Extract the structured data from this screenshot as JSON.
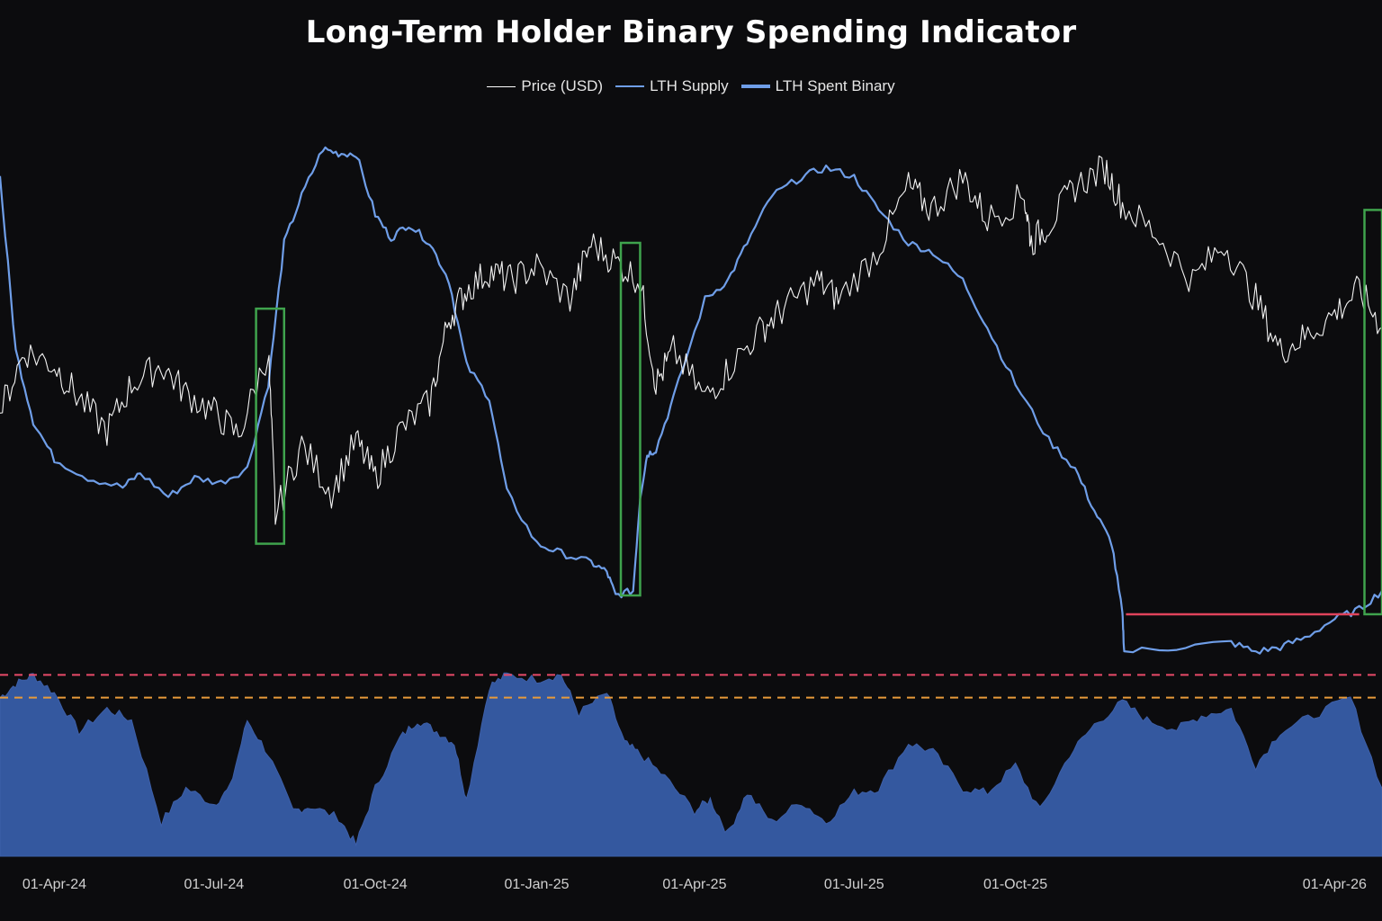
{
  "chart_data": {
    "type": "line",
    "title": "Long-Term Holder Binary Spending Indicator",
    "xlabel": "",
    "ylabel": "",
    "x_range": [
      "2024-03-01",
      "2026-04-28"
    ],
    "x_ticks": [
      "01-Apr-24",
      "01-Jul-24",
      "01-Oct-24",
      "01-Jan-25",
      "01-Apr-25",
      "01-Jul-25",
      "01-Oct-25",
      "01-Apr-26"
    ],
    "grid": false,
    "legend_position": "top-center",
    "legend": [
      {
        "name": "Price (USD)",
        "color": "#ffffff",
        "style": "thin"
      },
      {
        "name": "LTH Supply",
        "color": "#6f9ee8",
        "style": "medium"
      },
      {
        "name": "LTH Spent Binary",
        "color": "#6f9ee8",
        "style": "thick"
      }
    ],
    "series": [
      {
        "name": "Price (USD)",
        "color": "#f2f2f2",
        "scale": "relative (0-100)",
        "x": [
          "2024-03-01",
          "2024-03-15",
          "2024-04-01",
          "2024-04-15",
          "2024-05-01",
          "2024-05-15",
          "2024-06-01",
          "2024-06-15",
          "2024-07-01",
          "2024-07-15",
          "2024-08-01",
          "2024-08-05",
          "2024-08-20",
          "2024-09-06",
          "2024-09-20",
          "2024-10-01",
          "2024-10-15",
          "2024-11-01",
          "2024-11-12",
          "2024-11-22",
          "2024-12-05",
          "2024-12-17",
          "2025-01-01",
          "2025-01-20",
          "2025-02-01",
          "2025-02-15",
          "2025-03-01",
          "2025-03-10",
          "2025-03-20",
          "2025-04-07",
          "2025-04-22",
          "2025-05-10",
          "2025-05-22",
          "2025-06-10",
          "2025-06-22",
          "2025-07-14",
          "2025-08-01",
          "2025-08-14",
          "2025-09-01",
          "2025-09-15",
          "2025-10-06",
          "2025-10-10",
          "2025-10-20",
          "2025-11-04",
          "2025-11-21",
          "2025-12-01",
          "2025-12-20",
          "2026-01-10",
          "2026-01-28",
          "2026-02-15",
          "2026-03-01",
          "2026-03-15",
          "2026-04-01",
          "2026-04-15",
          "2026-04-28"
        ],
        "y": [
          42,
          55,
          52,
          45,
          38,
          48,
          52,
          46,
          42,
          37,
          55,
          20,
          35,
          25,
          36,
          28,
          38,
          44,
          62,
          68,
          72,
          70,
          73,
          66,
          78,
          74,
          70,
          48,
          55,
          45,
          52,
          60,
          64,
          70,
          66,
          76,
          90,
          85,
          92,
          83,
          88,
          78,
          82,
          90,
          94,
          86,
          80,
          70,
          78,
          66,
          55,
          58,
          63,
          68,
          60
        ]
      },
      {
        "name": "LTH Supply",
        "color": "#6f9ee8",
        "scale": "relative (0-100)",
        "x": [
          "2024-03-01",
          "2024-03-10",
          "2024-03-20",
          "2024-04-01",
          "2024-04-20",
          "2024-05-10",
          "2024-05-20",
          "2024-06-05",
          "2024-06-20",
          "2024-07-05",
          "2024-07-20",
          "2024-08-01",
          "2024-08-10",
          "2024-08-20",
          "2024-09-01",
          "2024-09-10",
          "2024-09-20",
          "2024-10-01",
          "2024-10-10",
          "2024-10-20",
          "2024-11-01",
          "2024-11-12",
          "2024-11-22",
          "2024-12-05",
          "2024-12-15",
          "2025-01-01",
          "2025-01-15",
          "2025-02-01",
          "2025-02-10",
          "2025-02-15",
          "2025-02-25",
          "2025-03-01",
          "2025-03-05",
          "2025-03-10",
          "2025-03-20",
          "2025-04-07",
          "2025-04-20",
          "2025-05-01",
          "2025-05-15",
          "2025-06-01",
          "2025-06-15",
          "2025-07-01",
          "2025-07-15",
          "2025-08-01",
          "2025-08-15",
          "2025-09-01",
          "2025-09-15",
          "2025-10-01",
          "2025-10-20",
          "2025-11-04",
          "2025-11-15",
          "2025-11-25",
          "2025-12-01",
          "2025-12-02",
          "2026-01-01",
          "2026-02-01",
          "2026-02-15",
          "2026-03-01",
          "2026-03-15",
          "2026-04-01",
          "2026-04-15",
          "2026-04-28"
        ],
        "y": [
          92,
          55,
          40,
          32,
          28,
          26,
          29,
          24,
          28,
          27,
          30,
          48,
          78,
          88,
          98,
          97,
          97,
          84,
          79,
          82,
          78,
          70,
          52,
          45,
          25,
          14,
          12,
          10,
          8,
          3,
          4,
          24,
          33,
          34,
          45,
          66,
          70,
          78,
          88,
          92,
          94,
          92,
          85,
          78,
          76,
          70,
          60,
          48,
          36,
          30,
          21,
          14,
          -1,
          -9,
          -8,
          -7,
          -9,
          -8,
          -6,
          -2,
          0,
          4
        ],
        "spend_events": [
          {
            "start": "2024-07-25",
            "end": "2024-08-10",
            "level": 14,
            "color": "#3fa34d"
          },
          {
            "start": "2025-02-18",
            "end": "2025-03-01",
            "level": 3,
            "color": "#3fa34d"
          },
          {
            "start": "2026-04-18",
            "end": "2026-04-28",
            "level": -1,
            "color": "#3fa34d"
          }
        ],
        "flat_segment": {
          "start": "2025-12-03",
          "end": "2026-04-15",
          "level": -1,
          "color": "#e0435b"
        }
      },
      {
        "name": "LTH Spent Binary",
        "type": "area",
        "color": "#3d5fa8",
        "fill": "#34589f",
        "y_range": [
          0,
          1
        ],
        "thresholds": [
          {
            "value": 0.8,
            "color": "#e84a68"
          },
          {
            "value": 0.7,
            "color": "#e89a3a"
          }
        ],
        "x": [
          "2024-03-01",
          "2024-03-10",
          "2024-03-20",
          "2024-04-01",
          "2024-04-15",
          "2024-05-01",
          "2024-05-15",
          "2024-06-01",
          "2024-06-15",
          "2024-07-01",
          "2024-07-10",
          "2024-07-20",
          "2024-08-01",
          "2024-08-15",
          "2024-08-25",
          "2024-09-10",
          "2024-09-20",
          "2024-10-01",
          "2024-10-15",
          "2024-10-25",
          "2024-11-05",
          "2024-11-15",
          "2024-11-22",
          "2024-12-05",
          "2024-12-15",
          "2025-01-01",
          "2025-01-15",
          "2025-01-25",
          "2025-02-10",
          "2025-02-20",
          "2025-03-01",
          "2025-03-15",
          "2025-04-01",
          "2025-04-10",
          "2025-04-20",
          "2025-05-01",
          "2025-05-15",
          "2025-06-01",
          "2025-06-15",
          "2025-07-01",
          "2025-07-15",
          "2025-08-01",
          "2025-08-15",
          "2025-09-01",
          "2025-09-15",
          "2025-10-01",
          "2025-10-15",
          "2025-11-01",
          "2025-11-15",
          "2025-12-01",
          "2025-12-15",
          "2026-01-01",
          "2026-01-15",
          "2026-02-01",
          "2026-02-15",
          "2026-03-01",
          "2026-03-20",
          "2026-04-10",
          "2026-04-28"
        ],
        "y": [
          0.7,
          0.76,
          0.8,
          0.72,
          0.55,
          0.65,
          0.6,
          0.15,
          0.3,
          0.23,
          0.3,
          0.6,
          0.45,
          0.2,
          0.22,
          0.17,
          0.05,
          0.3,
          0.52,
          0.6,
          0.55,
          0.5,
          0.25,
          0.75,
          0.8,
          0.78,
          0.8,
          0.63,
          0.72,
          0.5,
          0.45,
          0.35,
          0.2,
          0.25,
          0.1,
          0.28,
          0.15,
          0.24,
          0.15,
          0.28,
          0.3,
          0.5,
          0.46,
          0.3,
          0.28,
          0.4,
          0.2,
          0.45,
          0.58,
          0.68,
          0.6,
          0.56,
          0.62,
          0.65,
          0.4,
          0.55,
          0.62,
          0.7,
          0.3
        ]
      }
    ]
  }
}
